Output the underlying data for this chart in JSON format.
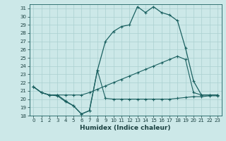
{
  "xlabel": "Humidex (Indice chaleur)",
  "bg_color": "#cce8e8",
  "grid_color": "#aad0d0",
  "line_color": "#1a6060",
  "ylim": [
    18,
    31.5
  ],
  "xlim": [
    -0.5,
    23.5
  ],
  "yticks": [
    18,
    19,
    20,
    21,
    22,
    23,
    24,
    25,
    26,
    27,
    28,
    29,
    30,
    31
  ],
  "xticks": [
    0,
    1,
    2,
    3,
    4,
    5,
    6,
    7,
    8,
    9,
    10,
    11,
    12,
    13,
    14,
    15,
    16,
    17,
    18,
    19,
    20,
    21,
    22,
    23
  ],
  "line1_x": [
    0,
    1,
    2,
    3,
    4,
    5,
    6,
    7,
    8,
    9,
    10,
    11,
    12,
    13,
    14,
    15,
    16,
    17,
    18,
    19,
    20,
    21,
    22,
    23
  ],
  "line1_y": [
    21.5,
    20.8,
    20.5,
    20.4,
    19.7,
    19.2,
    18.2,
    18.6,
    23.5,
    20.1,
    20.0,
    20.0,
    20.0,
    20.0,
    20.0,
    20.0,
    20.0,
    20.0,
    20.1,
    20.2,
    20.3,
    20.3,
    20.4,
    20.4
  ],
  "line2_x": [
    0,
    1,
    2,
    3,
    4,
    5,
    6,
    7,
    8,
    9,
    10,
    11,
    12,
    13,
    14,
    15,
    16,
    17,
    18,
    19,
    20,
    21,
    22,
    23
  ],
  "line2_y": [
    21.5,
    20.8,
    20.5,
    20.5,
    20.5,
    20.5,
    20.5,
    20.8,
    21.2,
    21.6,
    22.0,
    22.4,
    22.8,
    23.2,
    23.6,
    24.0,
    24.4,
    24.8,
    25.2,
    24.8,
    20.8,
    20.5,
    20.5,
    20.5
  ],
  "line3_x": [
    0,
    1,
    2,
    3,
    4,
    5,
    6,
    7,
    8,
    9,
    10,
    11,
    12,
    13,
    14,
    15,
    16,
    17,
    18,
    19,
    20,
    21,
    22,
    23
  ],
  "line3_y": [
    21.5,
    20.8,
    20.5,
    20.5,
    19.8,
    19.2,
    18.2,
    18.6,
    23.5,
    27.0,
    28.2,
    28.8,
    29.0,
    31.2,
    30.5,
    31.2,
    30.5,
    30.2,
    29.5,
    26.2,
    22.2,
    20.5,
    20.5,
    20.5
  ]
}
